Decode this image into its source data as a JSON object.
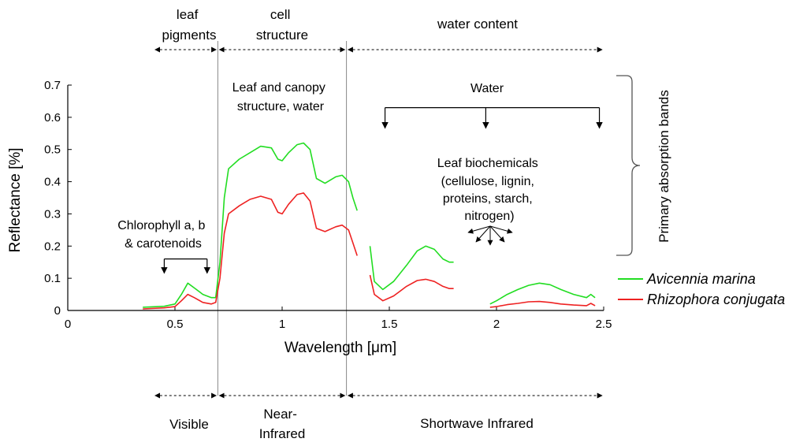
{
  "chart_data": {
    "type": "line",
    "xlabel": "Wavelength [μm]",
    "ylabel": "Reflectance [%]",
    "xlim": [
      0,
      2.5
    ],
    "ylim": [
      0,
      0.7
    ],
    "x_ticks": [
      "0",
      "0.5",
      "1",
      "1.5",
      "2",
      "2.5"
    ],
    "y_ticks": [
      "0",
      "0.1",
      "0.2",
      "0.3",
      "0.4",
      "0.5",
      "0.6",
      "0.7"
    ],
    "grid": false,
    "legend_position": "bottom-right",
    "dividers_x": [
      0.7,
      1.3
    ],
    "series": [
      {
        "name": "Avicennia marina",
        "color": "#22dd22",
        "segments": [
          [
            [
              0.35,
              0.01
            ],
            [
              0.45,
              0.013
            ],
            [
              0.5,
              0.02
            ],
            [
              0.53,
              0.05
            ],
            [
              0.56,
              0.085
            ],
            [
              0.59,
              0.07
            ],
            [
              0.63,
              0.05
            ],
            [
              0.67,
              0.04
            ],
            [
              0.69,
              0.04
            ],
            [
              0.71,
              0.15
            ],
            [
              0.73,
              0.35
            ],
            [
              0.75,
              0.44
            ],
            [
              0.8,
              0.47
            ],
            [
              0.85,
              0.49
            ],
            [
              0.9,
              0.51
            ],
            [
              0.95,
              0.505
            ],
            [
              0.98,
              0.47
            ],
            [
              1.0,
              0.465
            ],
            [
              1.03,
              0.49
            ],
            [
              1.07,
              0.515
            ],
            [
              1.1,
              0.52
            ],
            [
              1.13,
              0.5
            ],
            [
              1.16,
              0.41
            ],
            [
              1.2,
              0.395
            ],
            [
              1.25,
              0.415
            ],
            [
              1.28,
              0.42
            ],
            [
              1.31,
              0.4
            ],
            [
              1.33,
              0.35
            ],
            [
              1.35,
              0.31
            ]
          ],
          [
            [
              1.41,
              0.2
            ],
            [
              1.43,
              0.09
            ],
            [
              1.47,
              0.065
            ],
            [
              1.52,
              0.09
            ],
            [
              1.58,
              0.14
            ],
            [
              1.63,
              0.185
            ],
            [
              1.67,
              0.2
            ],
            [
              1.71,
              0.19
            ],
            [
              1.75,
              0.16
            ],
            [
              1.78,
              0.15
            ],
            [
              1.8,
              0.15
            ]
          ],
          [
            [
              1.97,
              0.02
            ],
            [
              2.0,
              0.03
            ],
            [
              2.05,
              0.05
            ],
            [
              2.1,
              0.065
            ],
            [
              2.15,
              0.078
            ],
            [
              2.2,
              0.085
            ],
            [
              2.25,
              0.08
            ],
            [
              2.3,
              0.065
            ],
            [
              2.36,
              0.05
            ],
            [
              2.42,
              0.04
            ],
            [
              2.44,
              0.05
            ],
            [
              2.46,
              0.04
            ]
          ]
        ]
      },
      {
        "name": "Rhizophora conjugata",
        "color": "#ee2222",
        "segments": [
          [
            [
              0.35,
              0.005
            ],
            [
              0.45,
              0.008
            ],
            [
              0.5,
              0.012
            ],
            [
              0.53,
              0.03
            ],
            [
              0.56,
              0.05
            ],
            [
              0.59,
              0.04
            ],
            [
              0.63,
              0.025
            ],
            [
              0.67,
              0.02
            ],
            [
              0.69,
              0.025
            ],
            [
              0.71,
              0.1
            ],
            [
              0.73,
              0.24
            ],
            [
              0.75,
              0.3
            ],
            [
              0.8,
              0.325
            ],
            [
              0.85,
              0.345
            ],
            [
              0.9,
              0.355
            ],
            [
              0.95,
              0.345
            ],
            [
              0.98,
              0.305
            ],
            [
              1.0,
              0.3
            ],
            [
              1.03,
              0.33
            ],
            [
              1.07,
              0.36
            ],
            [
              1.1,
              0.365
            ],
            [
              1.13,
              0.34
            ],
            [
              1.16,
              0.255
            ],
            [
              1.2,
              0.245
            ],
            [
              1.25,
              0.26
            ],
            [
              1.28,
              0.265
            ],
            [
              1.31,
              0.25
            ],
            [
              1.33,
              0.21
            ],
            [
              1.35,
              0.17
            ]
          ],
          [
            [
              1.41,
              0.11
            ],
            [
              1.43,
              0.05
            ],
            [
              1.47,
              0.03
            ],
            [
              1.52,
              0.045
            ],
            [
              1.58,
              0.075
            ],
            [
              1.63,
              0.093
            ],
            [
              1.67,
              0.097
            ],
            [
              1.71,
              0.09
            ],
            [
              1.75,
              0.075
            ],
            [
              1.78,
              0.068
            ],
            [
              1.8,
              0.068
            ]
          ],
          [
            [
              1.97,
              0.01
            ],
            [
              2.0,
              0.012
            ],
            [
              2.05,
              0.018
            ],
            [
              2.1,
              0.022
            ],
            [
              2.15,
              0.027
            ],
            [
              2.2,
              0.028
            ],
            [
              2.25,
              0.025
            ],
            [
              2.3,
              0.02
            ],
            [
              2.36,
              0.017
            ],
            [
              2.42,
              0.015
            ],
            [
              2.44,
              0.022
            ],
            [
              2.46,
              0.015
            ]
          ]
        ]
      }
    ],
    "top_regions": [
      {
        "label_lines": [
          "leaf",
          "pigments"
        ],
        "from": 0.4,
        "to": 0.7
      },
      {
        "label_lines": [
          "cell",
          "structure"
        ],
        "from": 0.7,
        "to": 1.3
      },
      {
        "label_lines": [
          "water content"
        ],
        "from": 1.3,
        "to": 2.5
      }
    ],
    "bottom_regions": [
      {
        "label_lines": [
          "Visible"
        ],
        "from": 0.4,
        "to": 0.7
      },
      {
        "label_lines": [
          "Near-",
          "Infrared"
        ],
        "from": 0.7,
        "to": 1.3
      },
      {
        "label_lines": [
          "Shortwave Infrared"
        ],
        "from": 1.3,
        "to": 2.5
      }
    ],
    "annotations": {
      "leaf_canopy": [
        "Leaf and canopy",
        "structure, water"
      ],
      "water": "Water",
      "water_arrows_x": [
        1.48,
        1.95,
        2.48
      ],
      "water_bracket_y": 0.63,
      "biochemicals": [
        "Leaf biochemicals",
        "(cellulose, lignin,",
        "proteins, starch,",
        "nitrogen)"
      ],
      "chlorophyll": [
        "Chlorophyll a, b",
        "& carotenoids"
      ],
      "chlorophyll_arrows_x": [
        0.45,
        0.65
      ],
      "chlorophyll_bracket_y": 0.16,
      "primary_absorption": "Primary absorption bands"
    }
  }
}
